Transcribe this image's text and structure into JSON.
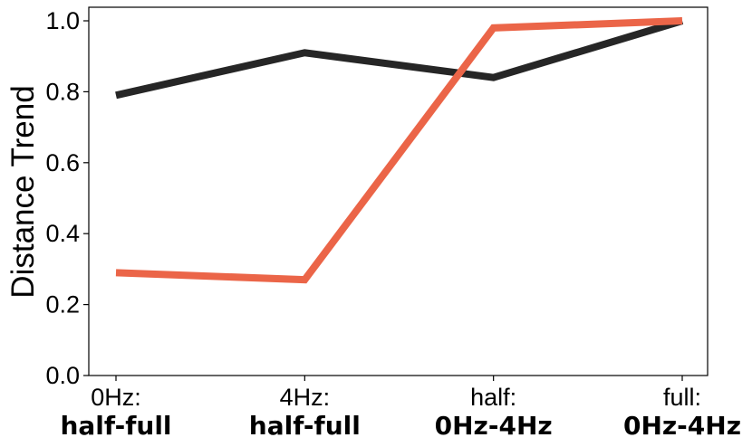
{
  "chart_data": {
    "type": "line",
    "categories": [
      {
        "top": "0Hz:",
        "bottom": "half-full"
      },
      {
        "top": "4Hz:",
        "bottom": "half-full"
      },
      {
        "top": "half:",
        "bottom": "0Hz-4Hz"
      },
      {
        "top": "full:",
        "bottom": "0Hz-4Hz"
      }
    ],
    "series": [
      {
        "color": "#262626",
        "values": [
          0.79,
          0.91,
          0.84,
          1.0
        ]
      },
      {
        "color": "#EB6548",
        "values": [
          0.29,
          0.27,
          0.98,
          1.0
        ]
      }
    ],
    "ylabel": "Distance Trend",
    "ylim": [
      0.0,
      1.0
    ],
    "yticks": [
      "0.0",
      "0.2",
      "0.4",
      "0.6",
      "0.8",
      "1.0"
    ],
    "grid": false,
    "legend": false
  }
}
